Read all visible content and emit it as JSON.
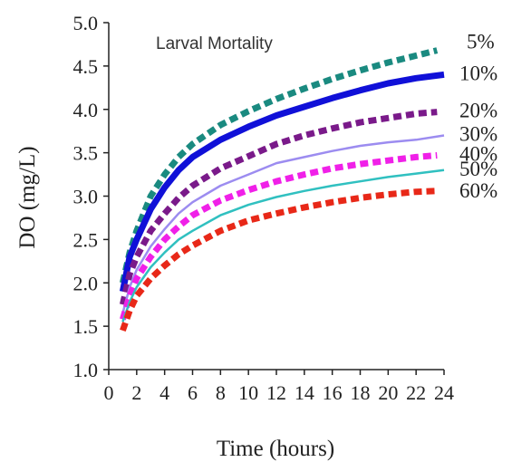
{
  "chart_data": {
    "type": "line",
    "title": "Larval Mortality",
    "xlabel": "Time (hours)",
    "ylabel": "DO  (mg/L)",
    "xlim": [
      0,
      24
    ],
    "ylim": [
      1.0,
      5.0
    ],
    "xticks": [
      0,
      2,
      4,
      6,
      8,
      10,
      12,
      14,
      16,
      18,
      20,
      22,
      24
    ],
    "yticks": [
      "1.0",
      "1.5",
      "2.0",
      "2.5",
      "3.0",
      "3.5",
      "4.0",
      "4.5",
      "5.0"
    ],
    "grid": false,
    "legend": "right, labels at line ends",
    "series": [
      {
        "name": "5%",
        "color": "#1a8a80",
        "style": "dashed-thick",
        "x": [
          1,
          1.5,
          2,
          3,
          4,
          5,
          6,
          8,
          10,
          12,
          14,
          16,
          18,
          20,
          22,
          23.5
        ],
        "y": [
          2.0,
          2.35,
          2.6,
          3.0,
          3.25,
          3.45,
          3.6,
          3.82,
          3.98,
          4.12,
          4.24,
          4.35,
          4.45,
          4.54,
          4.62,
          4.68
        ]
      },
      {
        "name": "10%",
        "color": "#1010d8",
        "style": "solid-thick",
        "x": [
          1,
          1.5,
          2,
          3,
          4,
          5,
          6,
          8,
          10,
          12,
          14,
          16,
          18,
          20,
          22,
          24
        ],
        "y": [
          1.9,
          2.3,
          2.5,
          2.85,
          3.1,
          3.3,
          3.45,
          3.65,
          3.8,
          3.93,
          4.03,
          4.13,
          4.22,
          4.3,
          4.36,
          4.4
        ]
      },
      {
        "name": "20%",
        "color": "#7a1a8a",
        "style": "dashed-thick",
        "x": [
          1,
          1.5,
          2,
          3,
          4,
          5,
          6,
          8,
          10,
          12,
          14,
          16,
          18,
          20,
          22,
          23.5
        ],
        "y": [
          1.75,
          2.1,
          2.3,
          2.6,
          2.8,
          2.98,
          3.12,
          3.32,
          3.46,
          3.6,
          3.7,
          3.78,
          3.85,
          3.9,
          3.95,
          3.97
        ]
      },
      {
        "name": "30%",
        "color": "#9c8cf0",
        "style": "solid-thin",
        "x": [
          1,
          1.5,
          2,
          3,
          4,
          5,
          6,
          8,
          10,
          12,
          14,
          16,
          18,
          20,
          22,
          24
        ],
        "y": [
          1.65,
          1.95,
          2.15,
          2.42,
          2.62,
          2.8,
          2.93,
          3.12,
          3.25,
          3.38,
          3.45,
          3.52,
          3.58,
          3.62,
          3.65,
          3.7
        ]
      },
      {
        "name": "40%",
        "color": "#f020e8",
        "style": "dashed-thick",
        "x": [
          1,
          1.5,
          2,
          3,
          4,
          5,
          6,
          8,
          10,
          12,
          14,
          16,
          18,
          20,
          22,
          23.5
        ],
        "y": [
          1.58,
          1.85,
          2.05,
          2.3,
          2.5,
          2.65,
          2.78,
          2.95,
          3.07,
          3.17,
          3.25,
          3.32,
          3.37,
          3.41,
          3.45,
          3.47
        ]
      },
      {
        "name": "50%",
        "color": "#30c0c0",
        "style": "solid-thin",
        "x": [
          1,
          1.5,
          2,
          3,
          4,
          5,
          6,
          8,
          10,
          12,
          14,
          16,
          18,
          20,
          22,
          24
        ],
        "y": [
          1.55,
          1.78,
          1.95,
          2.18,
          2.35,
          2.5,
          2.6,
          2.78,
          2.9,
          2.99,
          3.06,
          3.12,
          3.17,
          3.22,
          3.26,
          3.3
        ]
      },
      {
        "name": "60%",
        "color": "#e82818",
        "style": "dashed-thick",
        "x": [
          1,
          1.5,
          2,
          3,
          4,
          5,
          6,
          8,
          10,
          12,
          14,
          16,
          18,
          20,
          22,
          23.5
        ],
        "y": [
          1.45,
          1.68,
          1.85,
          2.05,
          2.2,
          2.33,
          2.43,
          2.6,
          2.72,
          2.8,
          2.87,
          2.93,
          2.98,
          3.02,
          3.05,
          3.06
        ]
      }
    ]
  }
}
